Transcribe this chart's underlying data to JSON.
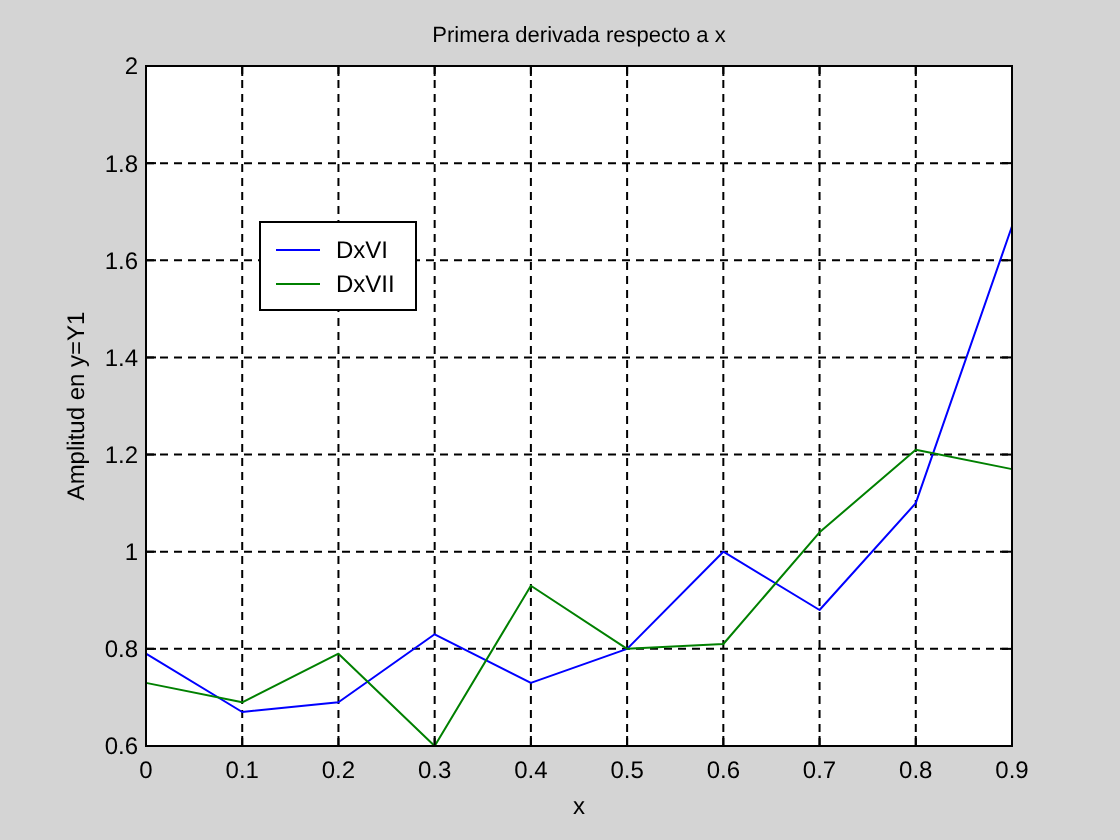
{
  "chart_data": {
    "type": "line",
    "title": "Primera derivada respecto a x",
    "xlabel": "x",
    "ylabel": "Amplitud en y=Y1",
    "x": [
      0,
      0.1,
      0.2,
      0.3,
      0.4,
      0.5,
      0.6,
      0.7,
      0.8,
      0.9
    ],
    "series": [
      {
        "name": "DxVI",
        "color": "#0000ff",
        "values": [
          0.79,
          0.67,
          0.69,
          0.83,
          0.73,
          0.8,
          1.0,
          0.88,
          1.1,
          1.67
        ]
      },
      {
        "name": "DxVII",
        "color": "#008000",
        "values": [
          0.73,
          0.69,
          0.79,
          0.6,
          0.93,
          0.8,
          0.81,
          1.04,
          1.21,
          1.17
        ]
      }
    ],
    "xlim": [
      0,
      0.9
    ],
    "xticks": [
      0,
      0.1,
      0.2,
      0.3,
      0.4,
      0.5,
      0.6,
      0.7,
      0.8,
      0.9
    ],
    "ylim": [
      0.6,
      2
    ],
    "yticks": [
      0.6,
      0.8,
      1,
      1.2,
      1.4,
      1.6,
      1.8,
      2
    ],
    "grid": true,
    "legend": "top left",
    "marker": "none",
    "line_style": "solid"
  }
}
